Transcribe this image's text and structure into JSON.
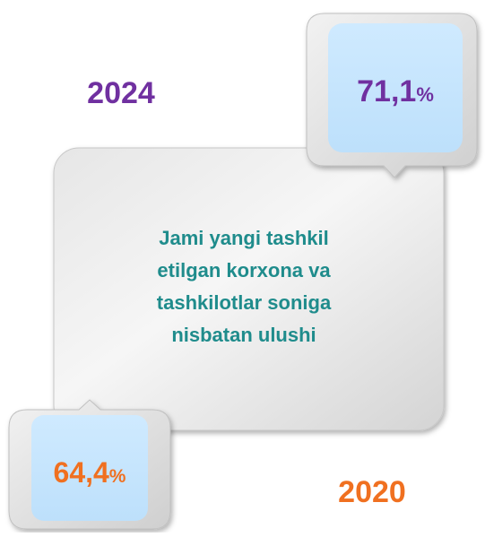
{
  "top_callout": {
    "year": "2024",
    "value": "71,1",
    "unit": "%"
  },
  "bottom_callout": {
    "year": "2020",
    "value": "64,4",
    "unit": "%"
  },
  "center_text": [
    "Jami yangi tashkil",
    "etilgan korxona va",
    "tashkilotlar soniga",
    "nisbatan ulushi"
  ]
}
